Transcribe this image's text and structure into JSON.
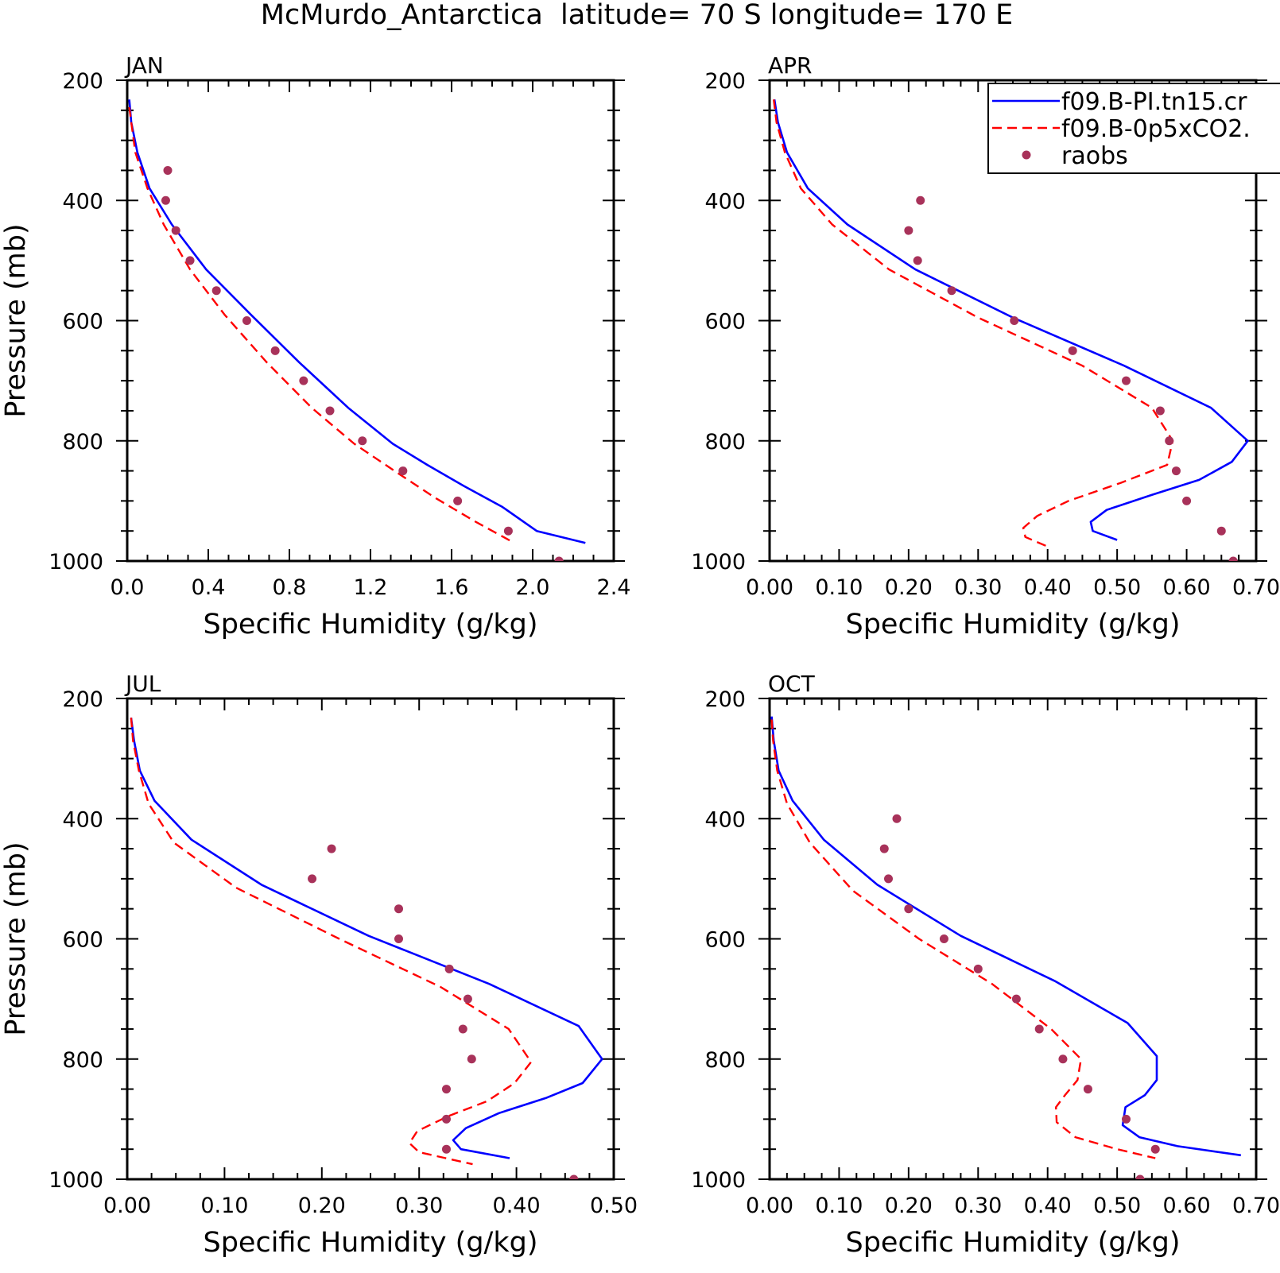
{
  "figure": {
    "title": "McMurdo_Antarctica  latitude= 70 S longitude= 170 E"
  },
  "colors": {
    "model_solid": "#0000ff",
    "model_dashed": "#ff0000",
    "raobs": "#a8325a",
    "axes": "#000000"
  },
  "legend": {
    "entries": [
      {
        "label": "f09.B-PI.tn15.cr",
        "style": "solid",
        "color": "#0000ff"
      },
      {
        "label": "f09.B-0p5xCO2.",
        "style": "dashed",
        "color": "#ff0000"
      },
      {
        "label": "raobs",
        "style": "marker",
        "color": "#a8325a"
      }
    ],
    "placement": "top-right of APR panel"
  },
  "chart_data": [
    {
      "type": "line",
      "panel": "JAN",
      "xlabel": "Specific Humidity (g/kg)",
      "ylabel": "Pressure (mb)",
      "xlim": [
        0,
        2.4
      ],
      "ylim": [
        1000,
        200
      ],
      "y_inverted": true,
      "xticks": [
        0.0,
        0.4,
        0.8,
        1.2,
        1.6,
        2.0,
        2.4
      ],
      "xtick_labels": [
        "0.0",
        "0.4",
        "0.8",
        "1.2",
        "1.6",
        "2.0",
        "2.4"
      ],
      "yticks": [
        200,
        400,
        600,
        800,
        1000
      ],
      "ytick_labels": [
        "200",
        "400",
        "600",
        "800",
        "1000"
      ],
      "series": [
        {
          "style": "solid",
          "color": "#0000ff",
          "x": [
            0.01,
            0.02,
            0.05,
            0.11,
            0.22,
            0.39,
            0.61,
            0.85,
            1.09,
            1.31,
            1.48,
            1.66,
            1.85,
            2.02,
            2.26
          ],
          "y": [
            232,
            270,
            320,
            380,
            440,
            515,
            590,
            670,
            745,
            805,
            840,
            875,
            910,
            950,
            970
          ]
        },
        {
          "style": "dashed",
          "color": "#ff0000",
          "x": [
            0.01,
            0.02,
            0.04,
            0.1,
            0.18,
            0.31,
            0.48,
            0.69,
            0.91,
            1.12,
            1.34,
            1.52,
            1.72,
            1.91
          ],
          "y": [
            245,
            270,
            320,
            380,
            440,
            515,
            590,
            670,
            745,
            805,
            855,
            895,
            935,
            970
          ]
        },
        {
          "style": "marker",
          "color": "#a8325a",
          "x": [
            0.2,
            0.19,
            0.24,
            0.31,
            0.44,
            0.59,
            0.73,
            0.87,
            1.0,
            1.16,
            1.36,
            1.63,
            1.88,
            2.13
          ],
          "y": [
            350,
            400,
            450,
            500,
            550,
            600,
            650,
            700,
            750,
            800,
            850,
            900,
            950,
            1000
          ]
        }
      ]
    },
    {
      "type": "line",
      "panel": "APR",
      "xlabel": "Specific Humidity (g/kg)",
      "ylabel": "",
      "xlim": [
        0,
        0.7
      ],
      "ylim": [
        1000,
        200
      ],
      "y_inverted": true,
      "xticks": [
        0.0,
        0.1,
        0.2,
        0.3,
        0.4,
        0.5,
        0.6,
        0.7
      ],
      "xtick_labels": [
        "0.00",
        "0.10",
        "0.20",
        "0.30",
        "0.40",
        "0.50",
        "0.60",
        "0.70"
      ],
      "yticks": [
        200,
        400,
        600,
        800,
        1000
      ],
      "ytick_labels": [
        "200",
        "400",
        "600",
        "800",
        "1000"
      ],
      "series": [
        {
          "style": "solid",
          "color": "#0000ff",
          "x": [
            0.007,
            0.012,
            0.025,
            0.055,
            0.112,
            0.21,
            0.35,
            0.51,
            0.635,
            0.688,
            0.665,
            0.618,
            0.55,
            0.485,
            0.462,
            0.465,
            0.5
          ],
          "y": [
            232,
            270,
            320,
            380,
            440,
            515,
            595,
            675,
            745,
            800,
            835,
            865,
            890,
            915,
            935,
            950,
            965
          ]
        },
        {
          "style": "dashed",
          "color": "#ff0000",
          "x": [
            0.006,
            0.01,
            0.022,
            0.045,
            0.09,
            0.172,
            0.3,
            0.45,
            0.55,
            0.58,
            0.572,
            0.505,
            0.43,
            0.385,
            0.365,
            0.368,
            0.398
          ],
          "y": [
            232,
            270,
            320,
            380,
            440,
            515,
            595,
            675,
            745,
            800,
            840,
            870,
            900,
            925,
            945,
            960,
            975
          ]
        },
        {
          "style": "marker",
          "color": "#a8325a",
          "x": [
            0.217,
            0.2,
            0.213,
            0.262,
            0.352,
            0.436,
            0.513,
            0.562,
            0.575,
            0.585,
            0.6,
            0.65,
            0.667
          ],
          "y": [
            400,
            450,
            500,
            550,
            600,
            650,
            700,
            750,
            800,
            850,
            900,
            950,
            1000
          ]
        }
      ]
    },
    {
      "type": "line",
      "panel": "JUL",
      "xlabel": "Specific Humidity (g/kg)",
      "ylabel": "Pressure (mb)",
      "xlim": [
        0,
        0.5
      ],
      "ylim": [
        1000,
        200
      ],
      "y_inverted": true,
      "xticks": [
        0.0,
        0.1,
        0.2,
        0.3,
        0.4,
        0.5
      ],
      "xtick_labels": [
        "0.00",
        "0.10",
        "0.20",
        "0.30",
        "0.40",
        "0.50"
      ],
      "yticks": [
        200,
        400,
        600,
        800,
        1000
      ],
      "ytick_labels": [
        "200",
        "400",
        "600",
        "800",
        "1000"
      ],
      "series": [
        {
          "style": "solid",
          "color": "#0000ff",
          "x": [
            0.004,
            0.007,
            0.013,
            0.028,
            0.066,
            0.138,
            0.248,
            0.372,
            0.464,
            0.488,
            0.468,
            0.43,
            0.382,
            0.348,
            0.335,
            0.343,
            0.393
          ],
          "y": [
            232,
            270,
            320,
            370,
            435,
            510,
            595,
            675,
            745,
            800,
            840,
            865,
            890,
            915,
            935,
            950,
            965
          ]
        },
        {
          "style": "dashed",
          "color": "#ff0000",
          "x": [
            0.004,
            0.006,
            0.012,
            0.022,
            0.048,
            0.112,
            0.218,
            0.322,
            0.392,
            0.415,
            0.398,
            0.37,
            0.33,
            0.298,
            0.29,
            0.3,
            0.355
          ],
          "y": [
            232,
            270,
            320,
            375,
            440,
            515,
            600,
            680,
            750,
            805,
            840,
            870,
            895,
            920,
            940,
            955,
            975
          ]
        },
        {
          "style": "marker",
          "color": "#a8325a",
          "x": [
            0.21,
            0.19,
            0.279,
            0.279,
            0.331,
            0.35,
            0.345,
            0.354,
            0.328,
            0.328,
            0.328,
            0.459
          ],
          "y": [
            450,
            500,
            550,
            600,
            650,
            700,
            750,
            800,
            850,
            900,
            950,
            1000
          ]
        }
      ]
    },
    {
      "type": "line",
      "panel": "OCT",
      "xlabel": "Specific Humidity (g/kg)",
      "ylabel": "",
      "xlim": [
        0,
        0.7
      ],
      "ylim": [
        1000,
        200
      ],
      "y_inverted": true,
      "xticks": [
        0.0,
        0.1,
        0.2,
        0.3,
        0.4,
        0.5,
        0.6,
        0.7
      ],
      "xtick_labels": [
        "0.00",
        "0.10",
        "0.20",
        "0.30",
        "0.40",
        "0.50",
        "0.60",
        "0.70"
      ],
      "yticks": [
        200,
        400,
        600,
        800,
        1000
      ],
      "ytick_labels": [
        "200",
        "400",
        "600",
        "800",
        "1000"
      ],
      "series": [
        {
          "style": "solid",
          "color": "#0000ff",
          "x": [
            0.003,
            0.006,
            0.013,
            0.033,
            0.078,
            0.155,
            0.275,
            0.41,
            0.515,
            0.557,
            0.557,
            0.54,
            0.512,
            0.508,
            0.532,
            0.587,
            0.678
          ],
          "y": [
            230,
            270,
            320,
            370,
            435,
            510,
            595,
            670,
            740,
            795,
            835,
            860,
            880,
            910,
            930,
            945,
            960
          ]
        },
        {
          "style": "dashed",
          "color": "#ff0000",
          "x": [
            0.003,
            0.005,
            0.011,
            0.025,
            0.058,
            0.12,
            0.215,
            0.32,
            0.405,
            0.448,
            0.443,
            0.425,
            0.412,
            0.413,
            0.44,
            0.5,
            0.555
          ],
          "y": [
            235,
            270,
            320,
            375,
            440,
            520,
            600,
            675,
            750,
            800,
            835,
            860,
            880,
            905,
            930,
            950,
            965
          ]
        },
        {
          "style": "marker",
          "color": "#a8325a",
          "x": [
            0.183,
            0.165,
            0.171,
            0.2,
            0.251,
            0.3,
            0.355,
            0.388,
            0.422,
            0.458,
            0.513,
            0.555,
            0.533
          ],
          "y": [
            400,
            450,
            500,
            550,
            600,
            650,
            700,
            750,
            800,
            850,
            900,
            950,
            1000
          ]
        }
      ]
    }
  ]
}
